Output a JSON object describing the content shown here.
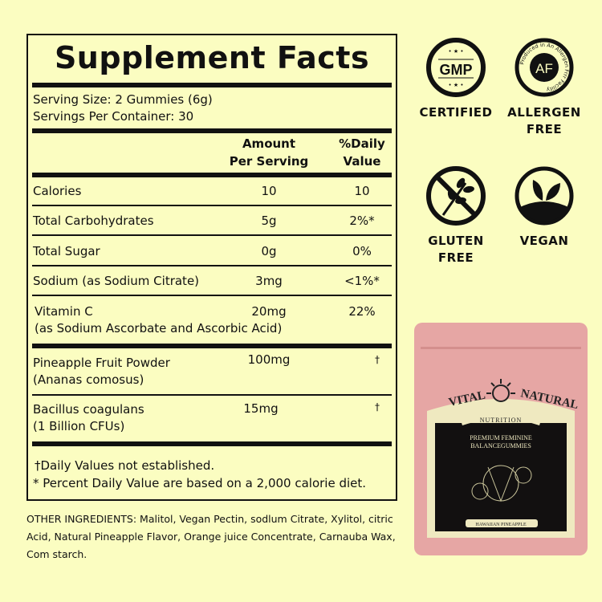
{
  "panel": {
    "title": "Supplement Facts",
    "serving_size": "Serving Size:  2 Gummies (6g)",
    "servings_per_container": "Servings Per Container:  30",
    "header_amount_1": "Amount",
    "header_amount_2": "Per Serving",
    "header_dv_1": "%Daily",
    "header_dv_2": "Value",
    "rows": [
      {
        "name": "Calories",
        "amount": "10",
        "dv": "10"
      },
      {
        "name": "Total Carbohydrates",
        "amount": "5g",
        "dv": "2%*"
      },
      {
        "name": "Total Sugar",
        "amount": "0g",
        "dv": "0%"
      },
      {
        "name": "Sodium (as Sodium Citrate)",
        "amount": "3mg",
        "dv": "<1%*"
      },
      {
        "name": "Vitamin C",
        "sub": "(as Sodium Ascorbate and Ascorbic Acid)",
        "amount": "20mg",
        "dv": "22%"
      },
      {
        "name": "Pineapple Fruit Powder",
        "sub": "(Ananas comosus)",
        "amount": "100mg",
        "dv": "†"
      },
      {
        "name": "Bacillus coagulans",
        "sub": "(1 Billion CFUs)",
        "amount": "15mg",
        "dv": "†"
      }
    ],
    "footnote_1": "†Daily Values not established.",
    "footnote_2": "* Percent Daily Value are based on a 2,000 calorie diet."
  },
  "ingredients": "OTHER INGREDIENTS: Malitol, Vegan Pectin, sodlum Citrate, Xylitol, citric Acid, Natural Pineapple Flavor, Orange juice Concentrate, Carnauba Wax, Com starch.",
  "badges": [
    {
      "icon": "gmp-icon",
      "icon_text": "GMP",
      "label": "CERTIFIED"
    },
    {
      "icon": "allergen-free-icon",
      "icon_text": "AF",
      "ring_text": "Produced in An Allergen Frrr Facility",
      "label": "ALLERGEN FREE"
    },
    {
      "icon": "gluten-free-icon",
      "label": "GLUTEN FREE"
    },
    {
      "icon": "vegan-icon",
      "label": "VEGAN"
    }
  ],
  "product": {
    "brand_left": "VITAL",
    "brand_right": "NATURAL",
    "brand_sub": "NUTRITION",
    "name": "PREMIUM FEMININE BALANCEGUMMIES",
    "flavor": "HAWAIIAN PINEAPPLE",
    "pouch_color": "#e6a6a4"
  },
  "colors": {
    "background": "#fbfdc1",
    "ink": "#111111"
  }
}
